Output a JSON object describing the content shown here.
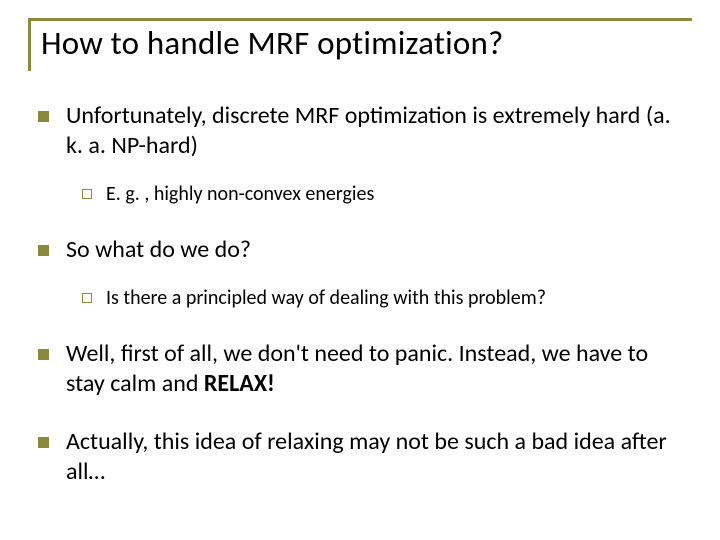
{
  "title": "How to handle MRF optimization?",
  "colors": {
    "accent": "#8a8a3a",
    "text": "#000000",
    "background": "#ffffff"
  },
  "typography": {
    "title_fontsize": 33,
    "level1_fontsize": 24,
    "level2_fontsize": 20,
    "font_family": "Calibri"
  },
  "bullets": [
    {
      "text": "Unfortunately, discrete MRF optimization is extremely hard (a. k. a. NP-hard)",
      "sub": [
        {
          "text": "E. g. , highly non-convex energies"
        }
      ]
    },
    {
      "text": "So what do we do?",
      "sub": [
        {
          "text": "Is there a principled way of dealing with this problem?"
        }
      ]
    },
    {
      "text_prefix": "Well, first of all, we don't need to panic. Instead, we have to stay calm and ",
      "text_bold": "RELAX!",
      "sub": []
    },
    {
      "text": "Actually, this idea of relaxing may not be such a bad idea after all…",
      "sub": []
    }
  ]
}
